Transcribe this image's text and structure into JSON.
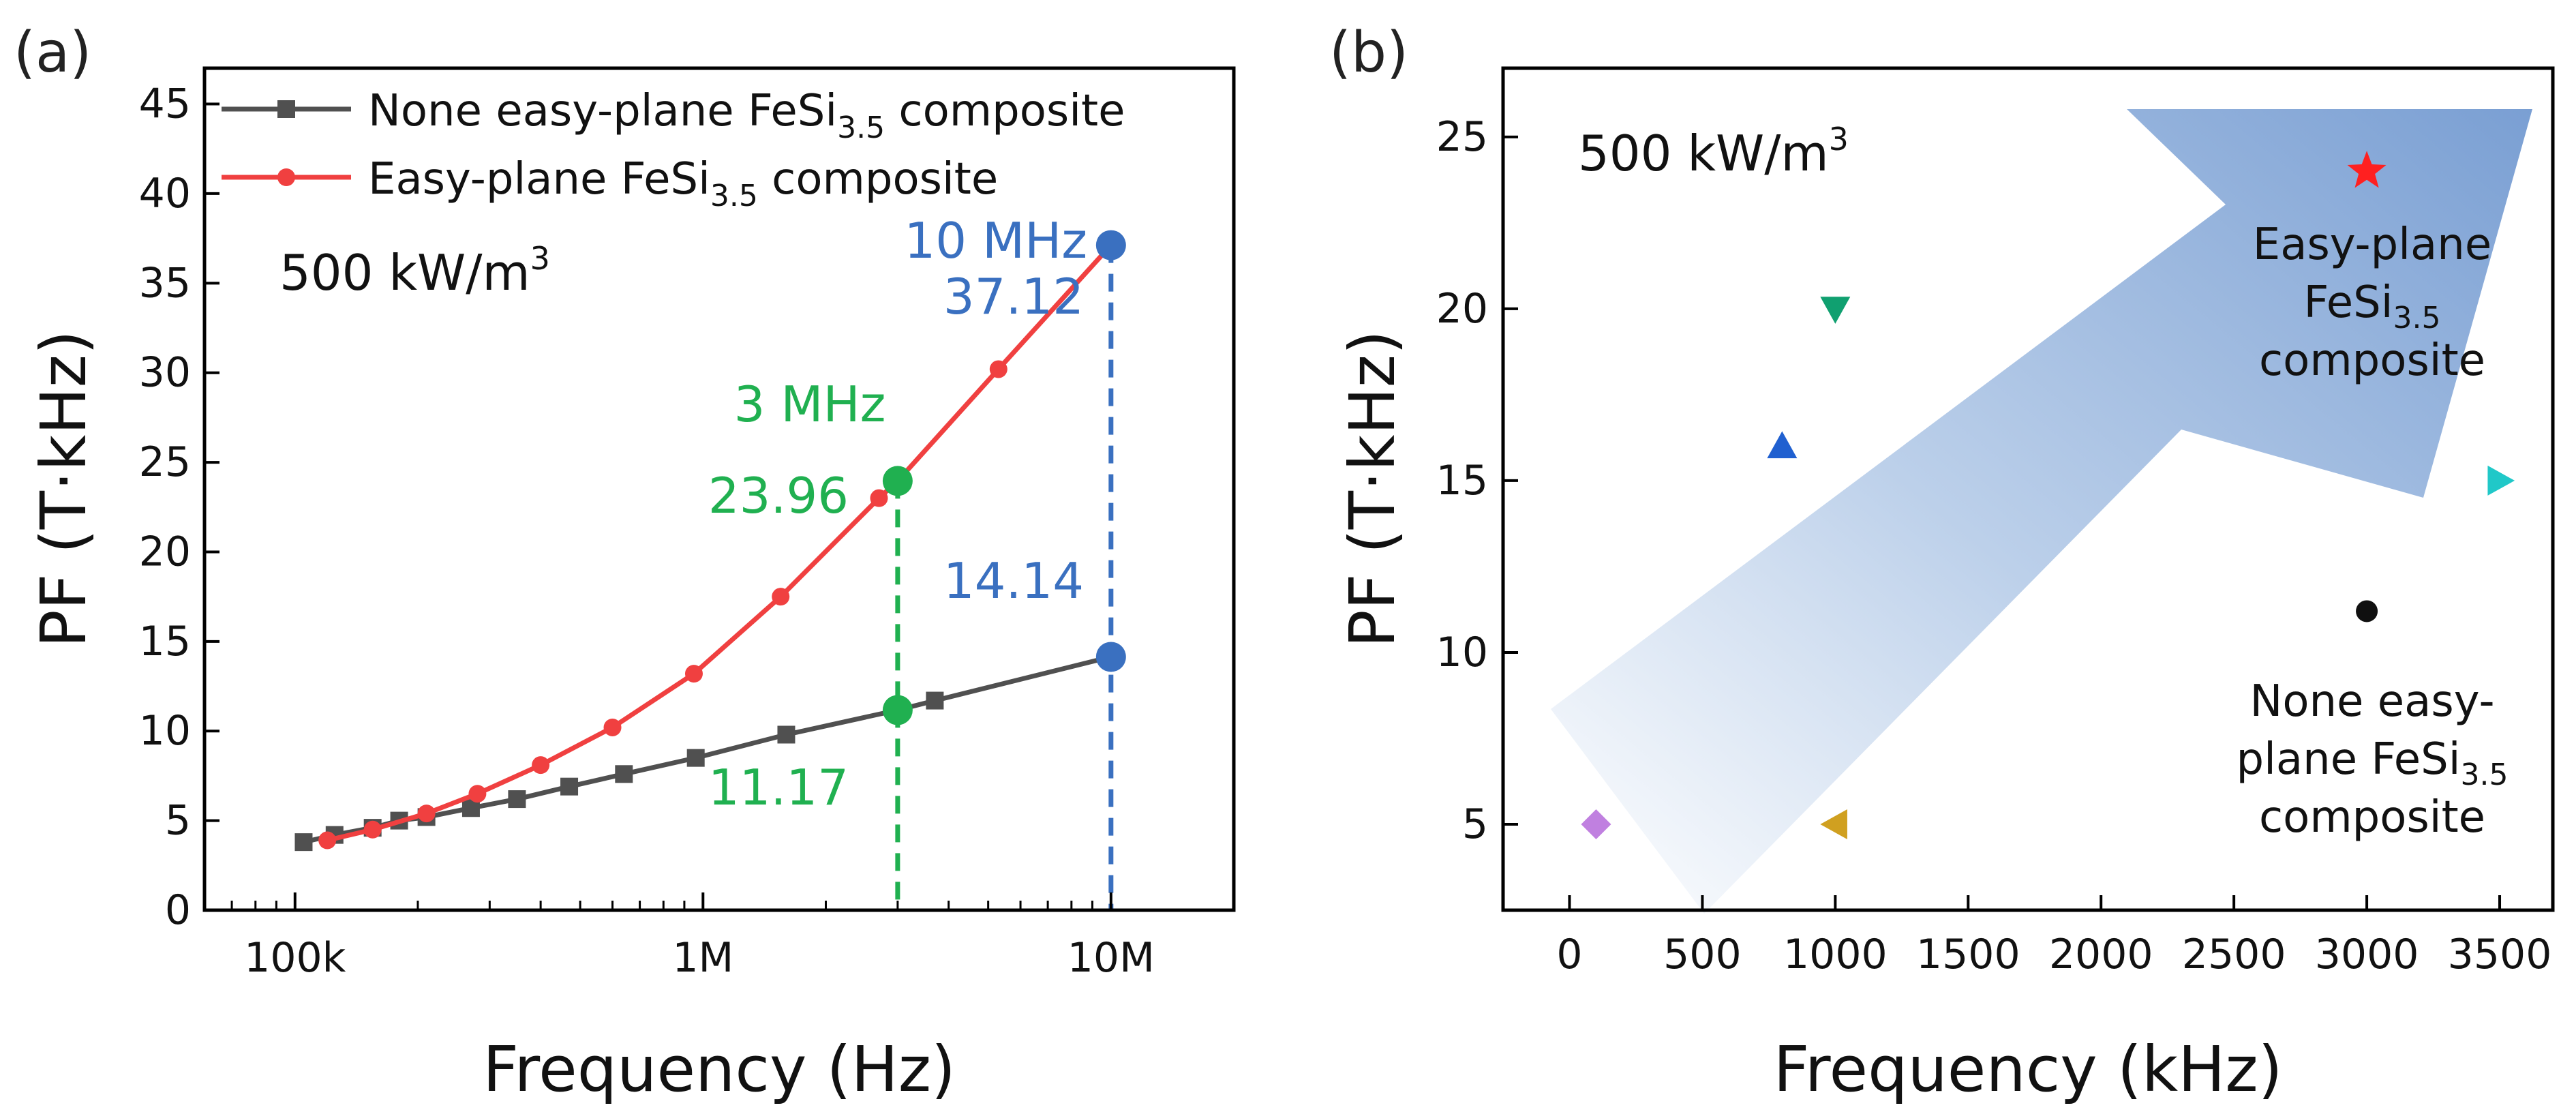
{
  "chart_data": [
    {
      "panel_label": "(a)",
      "type": "line",
      "xscale": "log",
      "xlim": [
        60000,
        20000000
      ],
      "ylim": [
        0,
        47
      ],
      "xlabel": "Frequency (Hz)",
      "ylabel": "PF (T·kHz)",
      "xticks": [
        {
          "value": 100000,
          "label": "100k"
        },
        {
          "value": 1000000,
          "label": "1M"
        },
        {
          "value": 10000000,
          "label": "10M"
        }
      ],
      "yticks": [
        0,
        5,
        10,
        15,
        20,
        25,
        30,
        35,
        40,
        45
      ],
      "condition_label": {
        "text": "500 kW/m",
        "sup": "3"
      },
      "legend": {
        "position": "top-left"
      },
      "series": [
        {
          "legend_text": "None easy-plane FeSi",
          "legend_sub": "3.5",
          "legend_tail": " composite",
          "color": "#505050",
          "marker": "square",
          "x": [
            105000,
            125000,
            155000,
            180000,
            210000,
            270000,
            350000,
            470000,
            640000,
            960000,
            1600000,
            3000000,
            3700000,
            10000000
          ],
          "y": [
            3.8,
            4.2,
            4.6,
            5.0,
            5.2,
            5.7,
            6.2,
            6.9,
            7.6,
            8.5,
            9.8,
            11.17,
            11.7,
            14.14
          ]
        },
        {
          "legend_text": "Easy-plane FeSi",
          "legend_sub": "3.5",
          "legend_tail": " composite",
          "color": "#f04040",
          "marker": "circle",
          "x": [
            120000,
            155000,
            210000,
            280000,
            400000,
            600000,
            950000,
            1550000,
            2700000,
            3000000,
            5300000,
            10000000
          ],
          "y": [
            3.9,
            4.5,
            5.4,
            6.5,
            8.1,
            10.2,
            13.2,
            17.5,
            23.0,
            23.96,
            30.2,
            37.12
          ]
        }
      ],
      "highlights": [
        {
          "x": 3000000,
          "y": 23.96,
          "color": "#20b050",
          "label": "23.96"
        },
        {
          "x": 3000000,
          "y": 11.17,
          "color": "#20b050",
          "label": "11.17"
        },
        {
          "x": 10000000,
          "y": 37.12,
          "color": "#3a70c0",
          "label": "37.12"
        },
        {
          "x": 10000000,
          "y": 14.14,
          "color": "#3a70c0",
          "label": "14.14"
        }
      ],
      "annotations": [
        {
          "text": "3 MHz",
          "color": "#20b050"
        },
        {
          "text": "10 MHz",
          "color": "#3a70c0"
        }
      ],
      "dashed_lines": [
        {
          "x": 3000000,
          "y_top": 23.96,
          "color": "#20b050"
        },
        {
          "x": 10000000,
          "y_top": 37.12,
          "color": "#3a70c0"
        }
      ]
    },
    {
      "panel_label": "(b)",
      "type": "scatter",
      "xlim": [
        -250,
        3700
      ],
      "ylim": [
        2.5,
        27
      ],
      "xlabel": "Frequency (kHz)",
      "ylabel": "PF (T·kHz)",
      "xticks": [
        0,
        500,
        1000,
        1500,
        2000,
        2500,
        3000,
        3500
      ],
      "yticks": [
        5,
        10,
        15,
        20,
        25
      ],
      "condition_label": {
        "text": "500 kW/m",
        "sup": "3"
      },
      "points": [
        {
          "x": 100,
          "y": 5,
          "marker": "diamond",
          "color": "#c080e0"
        },
        {
          "x": 800,
          "y": 16,
          "marker": "triangle-up",
          "color": "#2060d0"
        },
        {
          "x": 1000,
          "y": 20,
          "marker": "triangle-down",
          "color": "#10a070"
        },
        {
          "x": 1000,
          "y": 5,
          "marker": "triangle-left",
          "color": "#d0a020"
        },
        {
          "x": 3000,
          "y": 24,
          "marker": "star",
          "color": "#ff2020"
        },
        {
          "x": 3000,
          "y": 11.2,
          "marker": "circle",
          "color": "#101010"
        },
        {
          "x": 3500,
          "y": 15,
          "marker": "triangle-right",
          "color": "#20c8c8"
        }
      ],
      "annotations": [
        {
          "lines": [
            [
              "Easy-plane"
            ],
            [
              "FeSi",
              "3.5"
            ],
            [
              "composite"
            ]
          ]
        },
        {
          "lines": [
            [
              "None easy-"
            ],
            [
              "plane FeSi",
              "3.5"
            ],
            [
              "composite"
            ]
          ]
        }
      ]
    }
  ]
}
